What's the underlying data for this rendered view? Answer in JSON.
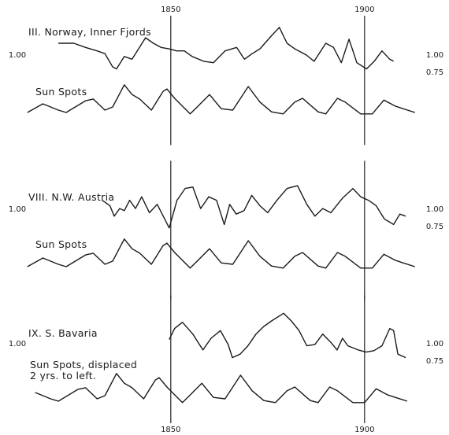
{
  "chart_data": [
    {
      "type": "line",
      "xlim": [
        1810,
        1915
      ],
      "xticks": [
        1850,
        1900
      ],
      "xtick_label_side": "top",
      "grid": true,
      "ylim": [
        -0.3,
        1.7
      ],
      "yticks": [
        {
          "value": 1,
          "label": "1.00"
        }
      ],
      "yticks_right": [
        {
          "value": 1,
          "label": "1.00"
        },
        {
          "value": 0.75,
          "label": "0.75"
        }
      ],
      "y2lim": [
        -80,
        320
      ],
      "series": [
        {
          "name": "III. Norway, Inner Fjords",
          "color": "#1a1a1a",
          "x": [
            1821,
            1825,
            1828,
            1831,
            1833,
            1835,
            1836,
            1838,
            1840,
            1843.5,
            1845.5,
            1847.5,
            1849.5,
            1851.5,
            1853.5,
            1855.5,
            1858.5,
            1861,
            1864,
            1867,
            1869,
            1871,
            1873,
            1876,
            1878,
            1880,
            1882,
            1885,
            1887,
            1890,
            1892,
            1894,
            1896,
            1898,
            1900.5,
            1902.5,
            1904.5,
            1906.5,
            1907.5
          ],
          "values": [
            1.17,
            1.17,
            1.11,
            1.06,
            1.02,
            0.83,
            0.8,
            0.98,
            0.94,
            1.25,
            1.17,
            1.11,
            1.09,
            1.06,
            1.06,
            0.98,
            0.91,
            0.89,
            1.06,
            1.11,
            0.94,
            1.02,
            1.09,
            1.28,
            1.4,
            1.17,
            1.09,
            1.0,
            0.91,
            1.17,
            1.11,
            0.89,
            1.23,
            0.89,
            0.8,
            0.91,
            1.06,
            0.94,
            0.91
          ]
        },
        {
          "name": "Sun Spots",
          "color": "#1a1a1a",
          "axis": "y2",
          "x": [
            1813,
            1817,
            1821,
            1823,
            1828,
            1830,
            1833,
            1835,
            1838,
            1840,
            1842,
            1845,
            1848,
            1849,
            1851,
            1855,
            1857,
            1860,
            1863,
            1866,
            1870,
            1873,
            1876,
            1879,
            1882,
            1884,
            1888,
            1890,
            1893,
            1895,
            1899,
            1902,
            1905,
            1908,
            1913
          ],
          "values": [
            14,
            39,
            21,
            14,
            48,
            53,
            21,
            30,
            94,
            66,
            53,
            21,
            75,
            82,
            55,
            10,
            32,
            66,
            25,
            21,
            89,
            44,
            16,
            10,
            44,
            55,
            16,
            10,
            55,
            44,
            10,
            10,
            50,
            32,
            14
          ]
        }
      ]
    },
    {
      "type": "line",
      "xlim": [
        1810,
        1915
      ],
      "xticks": [
        1850,
        1900
      ],
      "xtick_label_side": "none",
      "grid": true,
      "ylim": [
        -0.3,
        1.7
      ],
      "yticks": [
        {
          "value": 1,
          "label": "1.00"
        }
      ],
      "yticks_right": [
        {
          "value": 1,
          "label": "1.00"
        },
        {
          "value": 0.75,
          "label": "0.75"
        }
      ],
      "y2lim": [
        -80,
        320
      ],
      "series": [
        {
          "name": "VIII. N.W. Austria",
          "color": "#1a1a1a",
          "x": [
            1832.3,
            1834.3,
            1835.4,
            1836.8,
            1838,
            1839.4,
            1840.9,
            1842.5,
            1844.5,
            1846.5,
            1848.6,
            1849.6,
            1851.6,
            1853.7,
            1855.7,
            1857.7,
            1859.8,
            1861.8,
            1863.8,
            1865.2,
            1866.9,
            1868.9,
            1870.9,
            1873,
            1875,
            1877.4,
            1880,
            1882.7,
            1885.1,
            1887.2,
            1889.2,
            1891.3,
            1894.3,
            1897,
            1899,
            1901,
            1903,
            1905.1,
            1907.5,
            1909.1,
            1910.6
          ],
          "values": [
            1.13,
            1.05,
            0.9,
            1.01,
            0.98,
            1.13,
            1.01,
            1.18,
            0.95,
            1.07,
            0.84,
            0.73,
            1.13,
            1.3,
            1.32,
            1.01,
            1.18,
            1.13,
            0.78,
            1.07,
            0.93,
            0.98,
            1.2,
            1.05,
            0.95,
            1.13,
            1.3,
            1.34,
            1.07,
            0.9,
            1.01,
            0.95,
            1.16,
            1.3,
            1.18,
            1.13,
            1.05,
            0.86,
            0.78,
            0.93,
            0.9
          ]
        },
        {
          "name": "Sun Spots",
          "color": "#1a1a1a",
          "axis": "y2",
          "x": [
            1813,
            1817,
            1821,
            1823,
            1828,
            1830,
            1833,
            1835,
            1838,
            1840,
            1842,
            1845,
            1848,
            1849,
            1851,
            1855,
            1857,
            1860,
            1863,
            1866,
            1870,
            1873,
            1876,
            1879,
            1882,
            1884,
            1888,
            1890,
            1893,
            1895,
            1899,
            1902,
            1905,
            1908,
            1913
          ],
          "values": [
            14,
            39,
            21,
            14,
            48,
            53,
            21,
            30,
            94,
            66,
            53,
            21,
            75,
            82,
            55,
            10,
            32,
            66,
            25,
            21,
            89,
            44,
            16,
            10,
            44,
            55,
            16,
            10,
            55,
            44,
            10,
            10,
            50,
            32,
            14
          ]
        }
      ]
    },
    {
      "type": "line",
      "xlim": [
        1810,
        1915
      ],
      "xticks": [
        1850,
        1900
      ],
      "xtick_label_side": "bottom",
      "grid": true,
      "ylim": [
        -0.3,
        1.7
      ],
      "yticks": [
        {
          "value": 1,
          "label": "1.00"
        }
      ],
      "yticks_right": [
        {
          "value": 1,
          "label": "1.00"
        },
        {
          "value": 0.75,
          "label": "0.75"
        }
      ],
      "y2lim": [
        -80,
        320
      ],
      "series": [
        {
          "name": "IX. S. Bavaria",
          "color": "#1a1a1a",
          "x": [
            1849.6,
            1851,
            1853,
            1855.7,
            1858.3,
            1860.4,
            1862.8,
            1864.8,
            1865.9,
            1867.9,
            1869.9,
            1872,
            1874,
            1876,
            1879.1,
            1881.1,
            1883.1,
            1885.1,
            1887.2,
            1889.2,
            1891.3,
            1892.9,
            1894.3,
            1895.7,
            1898.4,
            1900.4,
            1902.4,
            1904.5,
            1906.5,
            1907.5,
            1908.6,
            1910.6
          ],
          "values": [
            1.06,
            1.22,
            1.31,
            1.14,
            0.91,
            1.08,
            1.19,
            0.99,
            0.8,
            0.85,
            0.97,
            1.14,
            1.25,
            1.33,
            1.44,
            1.33,
            1.19,
            0.97,
            0.99,
            1.14,
            1.02,
            0.91,
            1.08,
            0.97,
            0.91,
            0.88,
            0.9,
            0.97,
            1.22,
            1.19,
            0.85,
            0.8
          ]
        },
        {
          "name": "Sun Spots, displaced\n2 yrs. to left.",
          "color": "#1a1a1a",
          "axis": "y2",
          "x": [
            1815,
            1819,
            1821,
            1826,
            1828,
            1831,
            1833,
            1836,
            1838,
            1840,
            1843,
            1846,
            1847,
            1849,
            1853,
            1855,
            1858,
            1861,
            1864,
            1868,
            1871,
            1874,
            1877,
            1880,
            1882,
            1886,
            1888,
            1891,
            1893,
            1897,
            1900,
            1903,
            1906,
            1911
          ],
          "values": [
            39,
            21,
            14,
            48,
            53,
            21,
            30,
            94,
            66,
            53,
            21,
            75,
            82,
            55,
            10,
            32,
            66,
            25,
            21,
            89,
            44,
            16,
            10,
            44,
            55,
            16,
            10,
            55,
            44,
            10,
            10,
            50,
            32,
            14
          ]
        }
      ]
    }
  ]
}
